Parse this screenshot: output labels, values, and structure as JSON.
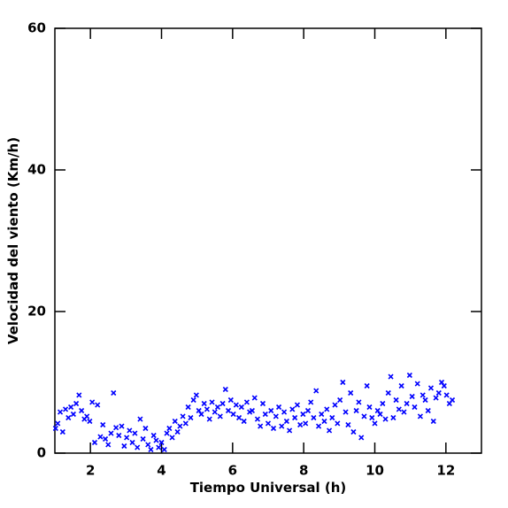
{
  "chart_data": {
    "type": "scatter",
    "x_label": "Tiempo Universal (h)",
    "y_label": "Velocidad del viento (Km/h)",
    "color": "#0000ff",
    "xlim": [
      1,
      13
    ],
    "ylim": [
      0,
      60
    ],
    "xticks": [
      2,
      4,
      6,
      8,
      10,
      12
    ],
    "yticks": [
      0,
      20,
      40,
      60
    ],
    "x": [
      1.02,
      1.08,
      1.15,
      1.22,
      1.3,
      1.38,
      1.45,
      1.52,
      1.6,
      1.68,
      1.75,
      1.83,
      1.9,
      1.98,
      2.05,
      2.12,
      2.2,
      2.28,
      2.35,
      2.42,
      2.5,
      2.58,
      2.65,
      2.72,
      2.8,
      2.88,
      2.95,
      3.02,
      3.1,
      3.18,
      3.25,
      3.32,
      3.4,
      3.48,
      3.55,
      3.62,
      3.7,
      3.78,
      3.85,
      3.92,
      4.0,
      4.08,
      4.15,
      4.22,
      4.3,
      4.38,
      4.45,
      4.52,
      4.6,
      4.68,
      4.75,
      4.82,
      4.9,
      4.98,
      5.05,
      5.12,
      5.2,
      5.28,
      5.35,
      5.42,
      5.5,
      5.58,
      5.65,
      5.72,
      5.8,
      5.88,
      5.95,
      6.02,
      6.1,
      6.18,
      6.25,
      6.32,
      6.4,
      6.48,
      6.55,
      6.62,
      6.7,
      6.78,
      6.85,
      6.92,
      7.0,
      7.08,
      7.15,
      7.22,
      7.3,
      7.38,
      7.45,
      7.52,
      7.6,
      7.68,
      7.75,
      7.82,
      7.9,
      7.98,
      8.05,
      8.12,
      8.2,
      8.28,
      8.35,
      8.42,
      8.5,
      8.58,
      8.65,
      8.72,
      8.8,
      8.88,
      8.95,
      9.02,
      9.1,
      9.18,
      9.25,
      9.32,
      9.4,
      9.48,
      9.55,
      9.62,
      9.7,
      9.78,
      9.85,
      9.92,
      10.0,
      10.08,
      10.15,
      10.22,
      10.3,
      10.38,
      10.45,
      10.52,
      10.6,
      10.68,
      10.75,
      10.82,
      10.9,
      10.98,
      11.05,
      11.12,
      11.2,
      11.28,
      11.35,
      11.42,
      11.5,
      11.58,
      11.65,
      11.72,
      11.8,
      11.88,
      11.95,
      12.02,
      12.1,
      12.18
    ],
    "values": [
      3.5,
      4.2,
      5.8,
      3.0,
      6.2,
      5.0,
      6.5,
      5.5,
      7.0,
      8.2,
      6.0,
      4.8,
      5.2,
      4.5,
      7.2,
      1.5,
      6.8,
      2.3,
      4.0,
      2.0,
      1.2,
      2.8,
      8.5,
      3.6,
      2.5,
      3.8,
      1.0,
      2.2,
      3.2,
      1.5,
      2.8,
      0.8,
      4.8,
      2.0,
      3.5,
      1.2,
      0.5,
      2.5,
      1.8,
      0.8,
      1.5,
      0.5,
      2.8,
      3.5,
      2.2,
      4.5,
      3.0,
      3.8,
      5.2,
      4.2,
      6.5,
      5.0,
      7.5,
      8.2,
      6.0,
      5.5,
      7.0,
      6.2,
      4.8,
      7.2,
      5.8,
      6.5,
      5.2,
      7.0,
      9.0,
      6.0,
      7.5,
      5.5,
      6.8,
      5.0,
      6.5,
      4.5,
      7.2,
      5.8,
      6.0,
      7.8,
      4.8,
      3.8,
      7.0,
      5.5,
      4.2,
      6.0,
      3.5,
      5.2,
      6.5,
      3.8,
      5.8,
      4.5,
      3.2,
      6.2,
      5.0,
      6.8,
      4.0,
      5.5,
      4.2,
      6.0,
      7.2,
      5.0,
      8.8,
      3.8,
      5.5,
      4.5,
      6.2,
      3.2,
      5.0,
      6.8,
      4.2,
      7.5,
      10.0,
      5.8,
      4.0,
      8.5,
      3.0,
      6.0,
      7.2,
      2.2,
      5.2,
      9.5,
      6.5,
      5.0,
      4.2,
      6.0,
      5.5,
      7.0,
      4.8,
      8.5,
      10.8,
      5.0,
      7.5,
      6.2,
      9.5,
      5.8,
      7.0,
      11.0,
      8.0,
      6.5,
      9.8,
      5.2,
      8.2,
      7.5,
      6.0,
      9.2,
      4.5,
      7.8,
      8.5,
      10.0,
      9.5,
      8.2,
      7.0,
      7.5
    ]
  }
}
